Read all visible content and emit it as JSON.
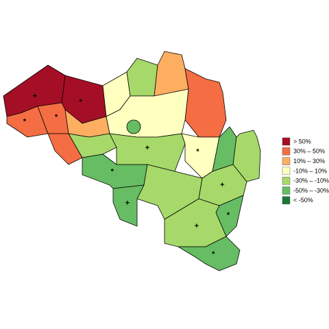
{
  "legend": [
    {
      "label": ">  50%",
      "color": "#a50f26"
    },
    {
      "label": "30%  –   50%",
      "color": "#f46d43"
    },
    {
      "label": "10%  –   30%",
      "color": "#fdae61"
    },
    {
      "label": "-10%  –   10%",
      "color": "#ffffbf"
    },
    {
      "label": "-30%  –  -10%",
      "color": "#a6d96a"
    },
    {
      "label": "-50%  –  -30%",
      "color": "#66bd63"
    },
    {
      "label": "<  -50%",
      "color": "#1a7837"
    }
  ],
  "regions": [
    {
      "class": 0,
      "mark": "+"
    },
    {
      "class": 0,
      "mark": "*"
    },
    {
      "class": 1,
      "mark": "*"
    },
    {
      "class": 1,
      "mark": "*"
    },
    {
      "class": 1
    },
    {
      "class": 2
    },
    {
      "class": 3
    },
    {
      "class": 4
    },
    {
      "class": 2
    },
    {
      "class": 1
    },
    {
      "class": 3
    },
    {
      "class": 5
    },
    {
      "class": 4
    },
    {
      "class": 5,
      "mark": "*"
    },
    {
      "class": 4,
      "mark": "+"
    },
    {
      "class": 3,
      "mark": "*"
    },
    {
      "class": 5
    },
    {
      "class": 4
    },
    {
      "class": 4
    },
    {
      "class": 5,
      "mark": "+"
    },
    {
      "class": 4,
      "mark": "+"
    },
    {
      "class": 5,
      "mark": "*"
    },
    {
      "class": 4,
      "mark": "+"
    },
    {
      "class": 5,
      "mark": "*"
    }
  ]
}
